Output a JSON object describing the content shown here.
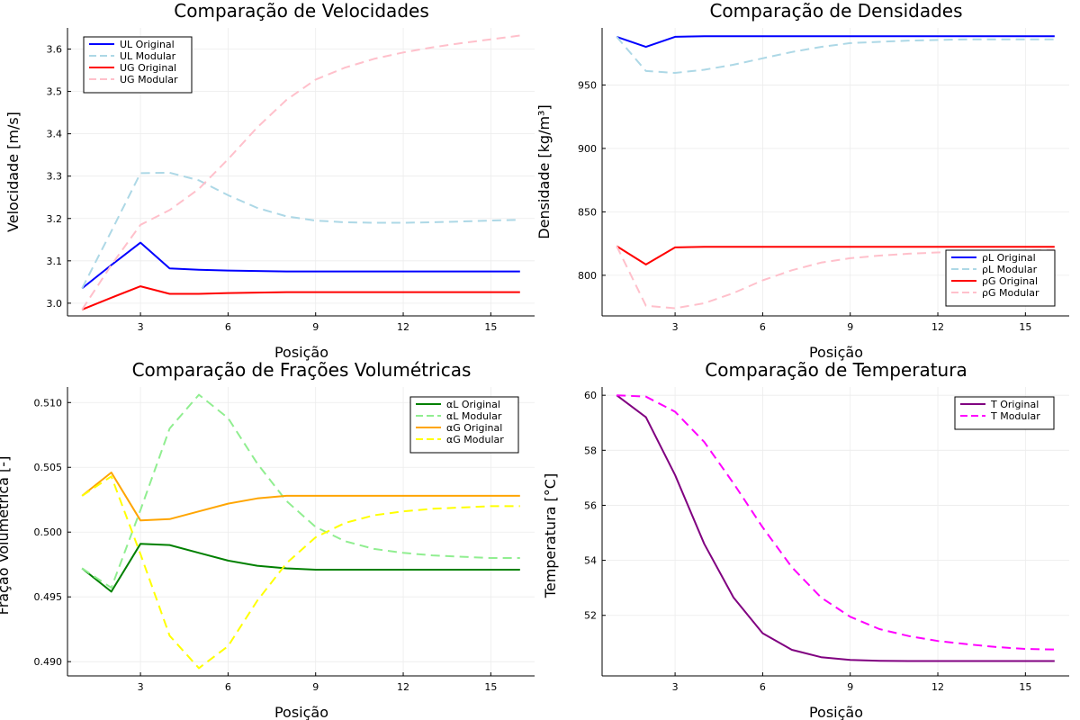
{
  "chart_data": [
    {
      "type": "line",
      "title": "Comparação de Velocidades",
      "xlabel": "Posição",
      "ylabel": "Velocidade [m/s]",
      "xlim": [
        0.5,
        16.5
      ],
      "ylim": [
        2.97,
        3.65
      ],
      "xticks": [
        3,
        6,
        9,
        12,
        15
      ],
      "yticks": [
        3.0,
        3.1,
        3.2,
        3.3,
        3.4,
        3.5,
        3.6
      ],
      "ytick_format": "1",
      "grid": true,
      "legend_position": "top-left",
      "x": [
        1,
        2,
        3,
        4,
        5,
        6,
        7,
        8,
        9,
        10,
        11,
        12,
        13,
        14,
        15,
        16
      ],
      "series": [
        {
          "name": "UL Original",
          "color": "#0000ff",
          "dash": "solid",
          "values": [
            3.035,
            3.09,
            3.143,
            3.082,
            3.079,
            3.077,
            3.076,
            3.075,
            3.075,
            3.075,
            3.075,
            3.075,
            3.075,
            3.075,
            3.075,
            3.075
          ]
        },
        {
          "name": "UL Modular",
          "color": "#add8e6",
          "dash": "dashed",
          "values": [
            3.035,
            3.17,
            3.307,
            3.308,
            3.29,
            3.255,
            3.225,
            3.205,
            3.195,
            3.191,
            3.19,
            3.19,
            3.191,
            3.193,
            3.195,
            3.197
          ]
        },
        {
          "name": "UG Original",
          "color": "#ff0000",
          "dash": "solid",
          "values": [
            2.985,
            3.013,
            3.04,
            3.022,
            3.022,
            3.024,
            3.025,
            3.026,
            3.026,
            3.026,
            3.026,
            3.026,
            3.026,
            3.026,
            3.026,
            3.026
          ]
        },
        {
          "name": "UG Modular",
          "color": "#ffc0cb",
          "dash": "dashed",
          "values": [
            2.985,
            3.09,
            3.185,
            3.22,
            3.27,
            3.34,
            3.415,
            3.48,
            3.528,
            3.556,
            3.577,
            3.592,
            3.604,
            3.614,
            3.623,
            3.632
          ]
        }
      ]
    },
    {
      "type": "line",
      "title": "Comparação de Densidades",
      "xlabel": "Posição",
      "ylabel": "Densidade [kg/m³]",
      "xlim": [
        0.5,
        16.5
      ],
      "ylim": [
        768,
        995
      ],
      "xticks": [
        3,
        6,
        9,
        12,
        15
      ],
      "yticks": [
        800,
        850,
        900,
        950
      ],
      "ytick_format": "0",
      "grid": true,
      "legend_position": "bottom-right",
      "x": [
        1,
        2,
        3,
        4,
        5,
        6,
        7,
        8,
        9,
        10,
        11,
        12,
        13,
        14,
        15,
        16
      ],
      "series": [
        {
          "name": "ρL Original",
          "color": "#0000ff",
          "dash": "solid",
          "values": [
            988,
            980,
            988,
            988.5,
            988.5,
            988.5,
            988.5,
            988.5,
            988.5,
            988.5,
            988.5,
            988.5,
            988.5,
            988.5,
            988.5,
            988.5
          ]
        },
        {
          "name": "ρL Modular",
          "color": "#add8e6",
          "dash": "dashed",
          "values": [
            988,
            961,
            959.5,
            962,
            966,
            971,
            976,
            980,
            983,
            984,
            985,
            985.5,
            986,
            986,
            986,
            986
          ]
        },
        {
          "name": "ρG Original",
          "color": "#ff0000",
          "dash": "solid",
          "values": [
            823,
            808.5,
            822,
            822.5,
            822.5,
            822.5,
            822.5,
            822.5,
            822.5,
            822.5,
            822.5,
            822.5,
            822.5,
            822.5,
            822.5,
            822.5
          ]
        },
        {
          "name": "ρG Modular",
          "color": "#ffc0cb",
          "dash": "dashed",
          "values": [
            823,
            776,
            774,
            778,
            786,
            796,
            804,
            810,
            813.5,
            815.5,
            817,
            818,
            818.5,
            819,
            819.5,
            820
          ]
        }
      ]
    },
    {
      "type": "line",
      "title": "Comparação de Frações Volumétricas",
      "xlabel": "Posição",
      "ylabel": "Fração Volumétrica [-]",
      "xlim": [
        0.5,
        16.5
      ],
      "ylim": [
        0.4889,
        0.5112
      ],
      "xticks": [
        3,
        6,
        9,
        12,
        15
      ],
      "yticks": [
        0.49,
        0.495,
        0.5,
        0.505,
        0.51
      ],
      "ytick_format": "3",
      "grid": true,
      "legend_position": "top-right",
      "x": [
        1,
        2,
        3,
        4,
        5,
        6,
        7,
        8,
        9,
        10,
        11,
        12,
        13,
        14,
        15,
        16
      ],
      "series": [
        {
          "name": "αL Original",
          "color": "#008000",
          "dash": "solid",
          "values": [
            0.4972,
            0.4954,
            0.4991,
            0.499,
            0.4984,
            0.4978,
            0.4974,
            0.4972,
            0.4971,
            0.4971,
            0.4971,
            0.4971,
            0.4971,
            0.4971,
            0.4971,
            0.4971
          ]
        },
        {
          "name": "αL Modular",
          "color": "#90ee90",
          "dash": "dashed",
          "values": [
            0.4972,
            0.4957,
            0.5017,
            0.508,
            0.5106,
            0.5088,
            0.5053,
            0.5024,
            0.5004,
            0.4993,
            0.4987,
            0.4984,
            0.4982,
            0.4981,
            0.498,
            0.498
          ]
        },
        {
          "name": "αG Original",
          "color": "#ffa500",
          "dash": "solid",
          "values": [
            0.5028,
            0.5046,
            0.5009,
            0.501,
            0.5016,
            0.5022,
            0.5026,
            0.5028,
            0.5028,
            0.5028,
            0.5028,
            0.5028,
            0.5028,
            0.5028,
            0.5028,
            0.5028
          ]
        },
        {
          "name": "αG Modular",
          "color": "#ffff00",
          "dash": "dashed",
          "values": [
            0.5028,
            0.5043,
            0.4983,
            0.492,
            0.4895,
            0.4912,
            0.4947,
            0.4976,
            0.4996,
            0.5007,
            0.5013,
            0.5016,
            0.5018,
            0.5019,
            0.502,
            0.502
          ]
        }
      ]
    },
    {
      "type": "line",
      "title": "Comparação de Temperatura",
      "xlabel": "Posição",
      "ylabel": "Temperatura [°C]",
      "xlim": [
        0.5,
        16.5
      ],
      "ylim": [
        49.8,
        60.3
      ],
      "xticks": [
        3,
        6,
        9,
        12,
        15
      ],
      "yticks": [
        52,
        54,
        56,
        58,
        60
      ],
      "ytick_format": "0",
      "grid": true,
      "legend_position": "top-right",
      "x": [
        1,
        2,
        3,
        4,
        5,
        6,
        7,
        8,
        9,
        10,
        11,
        12,
        13,
        14,
        15,
        16
      ],
      "series": [
        {
          "name": "T Original",
          "color": "#800080",
          "dash": "solid",
          "values": [
            60,
            59.2,
            57.1,
            54.6,
            52.65,
            51.35,
            50.75,
            50.48,
            50.38,
            50.35,
            50.34,
            50.34,
            50.34,
            50.34,
            50.34,
            50.34
          ]
        },
        {
          "name": "T Modular",
          "color": "#ff00ff",
          "dash": "dashed",
          "values": [
            60,
            59.95,
            59.4,
            58.3,
            56.8,
            55.2,
            53.75,
            52.65,
            51.95,
            51.5,
            51.25,
            51.07,
            50.95,
            50.85,
            50.78,
            50.76
          ]
        }
      ]
    }
  ]
}
